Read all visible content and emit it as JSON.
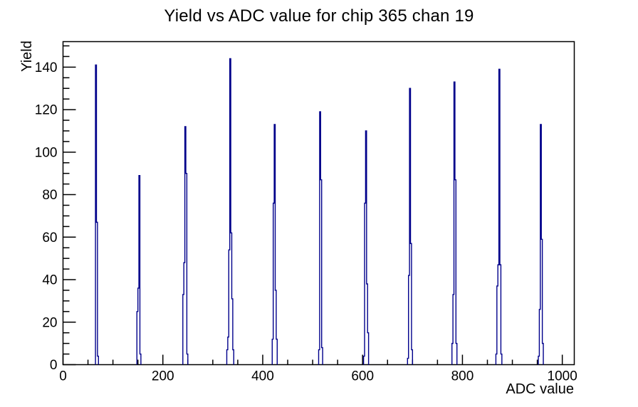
{
  "chart_data": {
    "type": "histogram",
    "title": "Yield vs ADC value for chip 365 chan 19",
    "xlabel": "ADC value",
    "ylabel": "Yield",
    "xlim": [
      0,
      1024
    ],
    "ylim": [
      0,
      152
    ],
    "x_major_ticks": [
      0,
      200,
      400,
      600,
      800,
      1000
    ],
    "x_minor_step": 50,
    "y_major_ticks": [
      0,
      20,
      40,
      60,
      80,
      100,
      120,
      140
    ],
    "y_minor_step": 5,
    "grid": false,
    "legend": "none",
    "line_color": "#00008b",
    "frame_color": "#000000",
    "background_color": "#ffffff",
    "peaks": [
      {
        "adc": 68,
        "yield": 141
      },
      {
        "adc": 152,
        "yield": 89
      },
      {
        "adc": 245,
        "yield": 112
      },
      {
        "adc": 335,
        "yield": 144
      },
      {
        "adc": 424,
        "yield": 113
      },
      {
        "adc": 516,
        "yield": 119
      },
      {
        "adc": 607,
        "yield": 110
      },
      {
        "adc": 695,
        "yield": 130
      },
      {
        "adc": 784,
        "yield": 133
      },
      {
        "adc": 873,
        "yield": 139
      },
      {
        "adc": 957,
        "yield": 113
      }
    ],
    "bin_width_adc": 2,
    "clusters": [
      {
        "center": 68,
        "bins": [
          141,
          67,
          4
        ]
      },
      {
        "center": 152,
        "bins": [
          25,
          36,
          89,
          5
        ]
      },
      {
        "center": 245,
        "bins": [
          33,
          48,
          112,
          90,
          5
        ]
      },
      {
        "center": 335,
        "bins": [
          7,
          13,
          54,
          144,
          62,
          31,
          7
        ]
      },
      {
        "center": 424,
        "bins": [
          12,
          76,
          113,
          35,
          12
        ]
      },
      {
        "center": 516,
        "bins": [
          7,
          119,
          87,
          8
        ]
      },
      {
        "center": 607,
        "bins": [
          4,
          76,
          110,
          38,
          15
        ]
      },
      {
        "center": 695,
        "bins": [
          3,
          42,
          130,
          57,
          7
        ]
      },
      {
        "center": 784,
        "bins": [
          10,
          33,
          133,
          87,
          10
        ]
      },
      {
        "center": 873,
        "bins": [
          5,
          37,
          47,
          139,
          47,
          5
        ]
      },
      {
        "center": 957,
        "bins": [
          4,
          26,
          113,
          59,
          10
        ]
      }
    ]
  }
}
